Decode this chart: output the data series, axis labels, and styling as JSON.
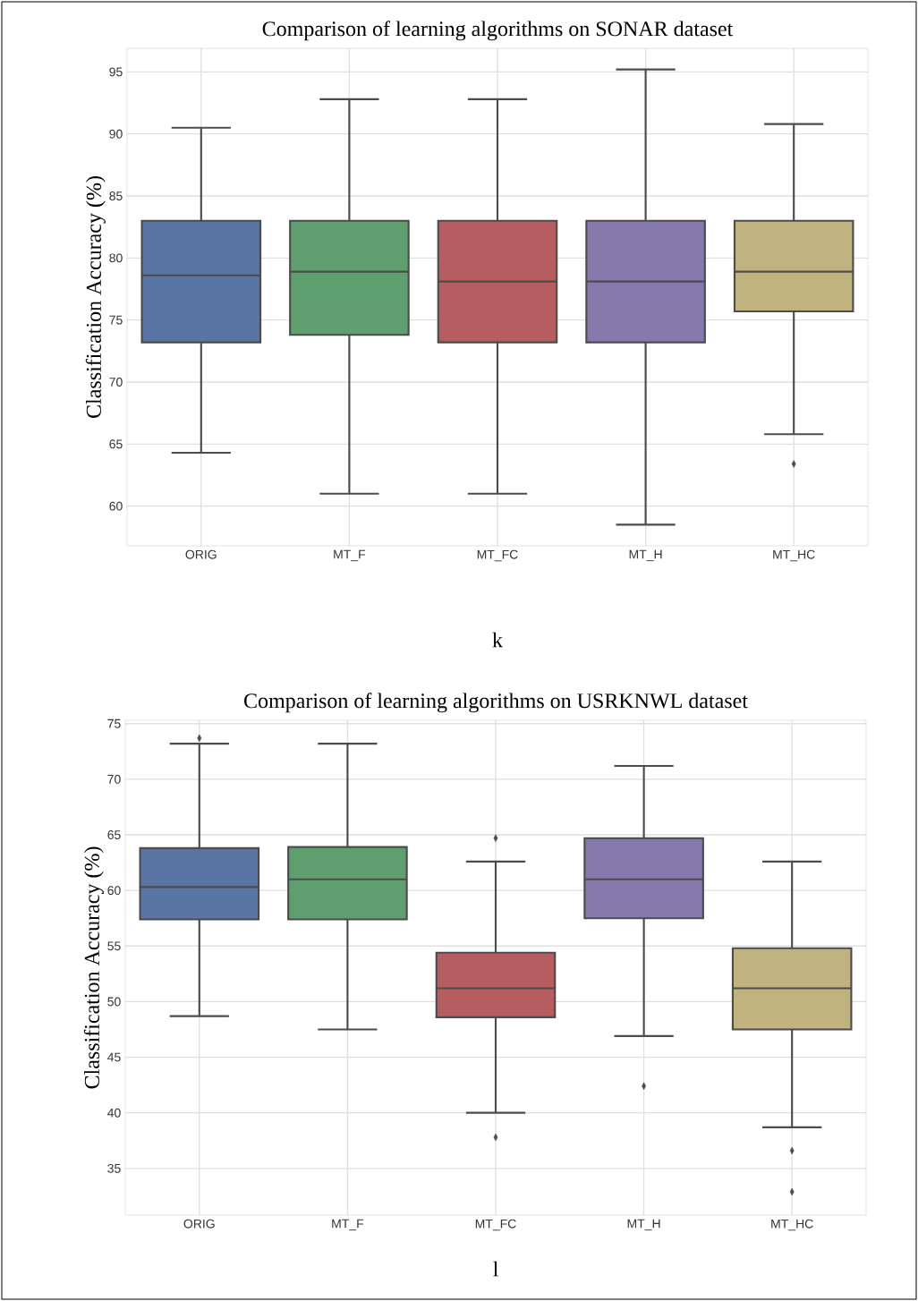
{
  "chart_data": [
    {
      "type": "box",
      "title": "Comparison of learning algorithms on SONAR dataset",
      "ylabel": "Classification Accuracy (%)",
      "categories": [
        "ORIG",
        "MT_F",
        "MT_FC",
        "MT_H",
        "MT_HC"
      ],
      "colors": [
        "#5875a4",
        "#5f9e6e",
        "#b55d60",
        "#857aab",
        "#c1b37f"
      ],
      "ylim": [
        56.8,
        96.9
      ],
      "yticks": [
        60,
        65,
        70,
        75,
        80,
        85,
        90,
        95
      ],
      "grid": true,
      "annotations": [
        "k"
      ],
      "boxes": [
        {
          "low": 64.3,
          "q1": 73.2,
          "median": 78.6,
          "q3": 83.0,
          "high": 90.5
        },
        {
          "low": 61.0,
          "q1": 73.8,
          "median": 78.9,
          "q3": 83.0,
          "high": 92.8
        },
        {
          "low": 61.0,
          "q1": 73.2,
          "median": 78.1,
          "q3": 83.0,
          "high": 92.8
        },
        {
          "low": 58.5,
          "q1": 73.2,
          "median": 78.1,
          "q3": 83.0,
          "high": 95.2
        },
        {
          "low": 65.8,
          "q1": 75.7,
          "median": 78.9,
          "q3": 83.0,
          "high": 90.8,
          "outliers": [
            63.4
          ]
        }
      ]
    },
    {
      "type": "box",
      "title": "Comparison of learning algorithms on USRKNWL dataset",
      "ylabel": "Classification Accuracy (%)",
      "categories": [
        "ORIG",
        "MT_F",
        "MT_FC",
        "MT_H",
        "MT_HC"
      ],
      "colors": [
        "#5875a4",
        "#5f9e6e",
        "#b55d60",
        "#857aab",
        "#c1b37f"
      ],
      "ylim": [
        30.8,
        75.3
      ],
      "yticks": [
        35,
        40,
        45,
        50,
        55,
        60,
        65,
        70,
        75
      ],
      "grid": true,
      "annotations": [
        "l"
      ],
      "boxes": [
        {
          "low": 48.7,
          "q1": 57.4,
          "median": 60.3,
          "q3": 63.8,
          "high": 73.2,
          "outliers": [
            73.7
          ]
        },
        {
          "low": 47.5,
          "q1": 57.4,
          "median": 61.0,
          "q3": 63.9,
          "high": 73.2
        },
        {
          "low": 40.0,
          "q1": 48.6,
          "median": 51.2,
          "q3": 54.4,
          "high": 62.6,
          "outliers": [
            64.7,
            37.8
          ]
        },
        {
          "low": 46.9,
          "q1": 57.5,
          "median": 61.0,
          "q3": 64.7,
          "high": 71.2,
          "outliers": [
            42.4
          ]
        },
        {
          "low": 38.7,
          "q1": 47.5,
          "median": 51.2,
          "q3": 54.8,
          "high": 62.6,
          "outliers": [
            36.6,
            32.9
          ]
        }
      ]
    }
  ]
}
